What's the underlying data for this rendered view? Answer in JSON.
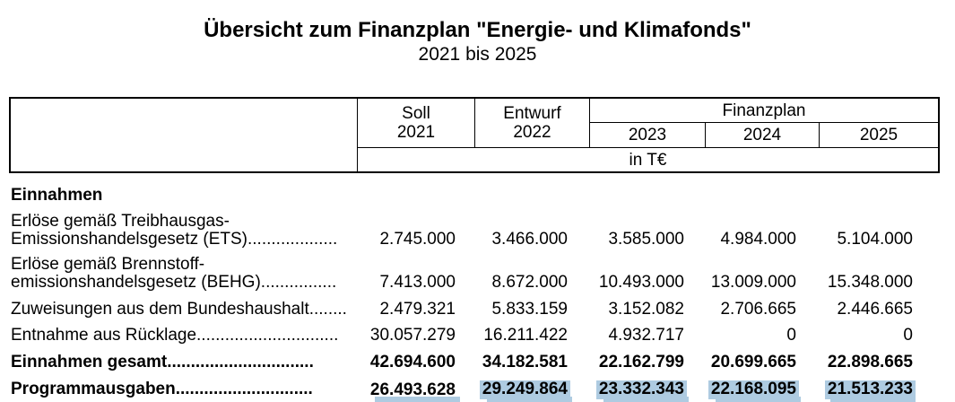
{
  "colors": {
    "highlight": "#aecbe1",
    "text": "#000000",
    "border": "#000000"
  },
  "title": "Übersicht zum Finanzplan \"Energie- und Klimafonds\"",
  "subtitle": "2021 bis 2025",
  "table": {
    "header": {
      "col_soll": [
        "Soll",
        "2021"
      ],
      "col_entwurf": [
        "Entwurf",
        "2022"
      ],
      "group_label": "Finanzplan",
      "years": [
        "2023",
        "2024",
        "2025"
      ],
      "unit_label": "in T€"
    },
    "section_label": "Einnahmen",
    "rows": [
      {
        "label_line1": "Erlöse gemäß Treibhausgas-",
        "label_line2": "Emissionshandelsgesetz (ETS)...................",
        "values": [
          "2.745.000",
          "3.466.000",
          "3.585.000",
          "4.984.000",
          "5.104.000"
        ]
      },
      {
        "label_line1": "Erlöse gemäß Brennstoff-",
        "label_line2": "emissionshandelsgesetz (BEHG)................",
        "values": [
          "7.413.000",
          "8.672.000",
          "10.493.000",
          "13.009.000",
          "15.348.000"
        ]
      },
      {
        "label": "Zuweisungen aus dem Bundeshaushalt........",
        "values": [
          "2.479.321",
          "5.833.159",
          "3.152.082",
          "2.706.665",
          "2.446.665"
        ]
      },
      {
        "label": "Entnahme aus Rücklage..............................",
        "values": [
          "30.057.279",
          "16.211.422",
          "4.932.717",
          "0",
          "0"
        ]
      },
      {
        "label": "Einnahmen gesamt...............................",
        "bold": true,
        "values": [
          "42.694.600",
          "34.182.581",
          "22.162.799",
          "20.699.665",
          "22.898.665"
        ]
      },
      {
        "label": "Programmausgaben.............................",
        "bold": true,
        "values": [
          "26.493.628",
          "29.249.864",
          "23.332.343",
          "22.168.095",
          "21.513.233"
        ],
        "highlighted_values": [
          false,
          true,
          true,
          true,
          true
        ]
      }
    ]
  }
}
